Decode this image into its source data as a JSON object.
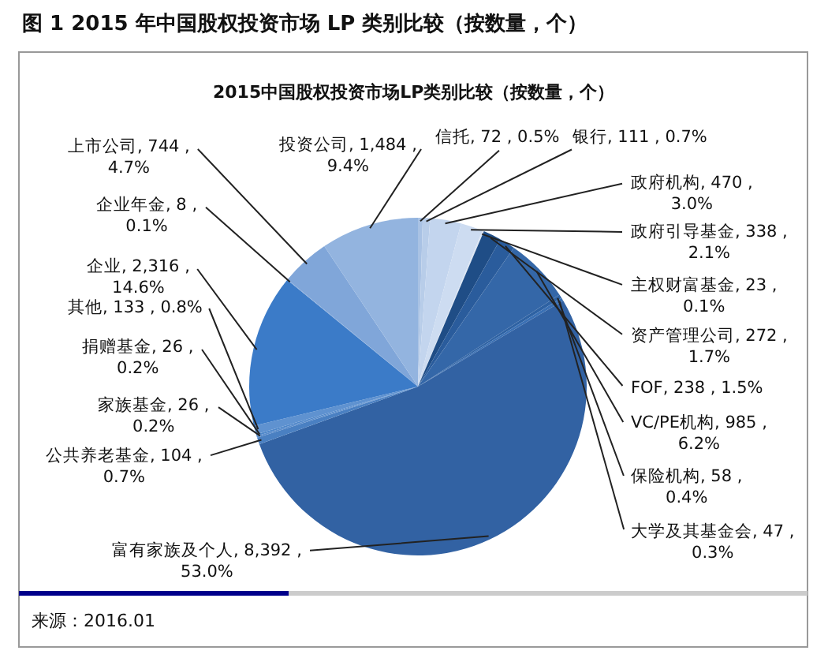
{
  "chart_data": {
    "type": "pie",
    "title": "图 1 2015 年中国股权投资市场 LP 类别比较（按数量，个）",
    "subtitle": "2015中国股权投资市场LP类别比较（按数量，个）",
    "categories": [
      "信托",
      "银行",
      "政府机构",
      "政府引导基金",
      "主权财富基金",
      "资产管理公司",
      "FOF",
      "VC/PE机构",
      "保险机构",
      "大学及其基金会",
      "富有家族及个人",
      "公共养老基金",
      "家族基金",
      "捐赠基金",
      "其他",
      "企业",
      "企业年金",
      "上市公司",
      "投资公司"
    ],
    "values": [
      72,
      111,
      470,
      338,
      23,
      272,
      238,
      985,
      58,
      47,
      8392,
      104,
      26,
      26,
      133,
      2316,
      8,
      744,
      1484
    ],
    "value_labels": [
      "72 , 0.5%",
      "111 , 0.7%",
      "470 , 3.0%",
      "338 , 2.1%",
      "23 , 0.1%",
      "272 , 1.7%",
      "238 , 1.5%",
      "985 , 6.2%",
      "58 , 0.4%",
      "47 , 0.3%",
      "8,392 , 53.0%",
      "104 , 0.7%",
      "26 , 0.2%",
      "26 , 0.2%",
      "133 , 0.8%",
      "2,316 , 14.6%",
      "8 , 0.1%",
      "744 , 4.7%",
      "1,484 , 9.4%"
    ],
    "colors": [
      "#a9c2e4",
      "#b8cde9",
      "#c3d5ee",
      "#cddcf1",
      "#dbe5f3",
      "#1f4d86",
      "#2a5c9c",
      "#3467a8",
      "#2e62a3",
      "#3a70b4",
      "#3262a3",
      "#4a80c2",
      "#5a8ccb",
      "#4d86c9",
      "#5f92d0",
      "#3b7bc8",
      "#6e9bd6",
      "#80a6d9",
      "#93b4df"
    ],
    "legend": false,
    "annotations": [
      "来源：2016.01"
    ]
  }
}
